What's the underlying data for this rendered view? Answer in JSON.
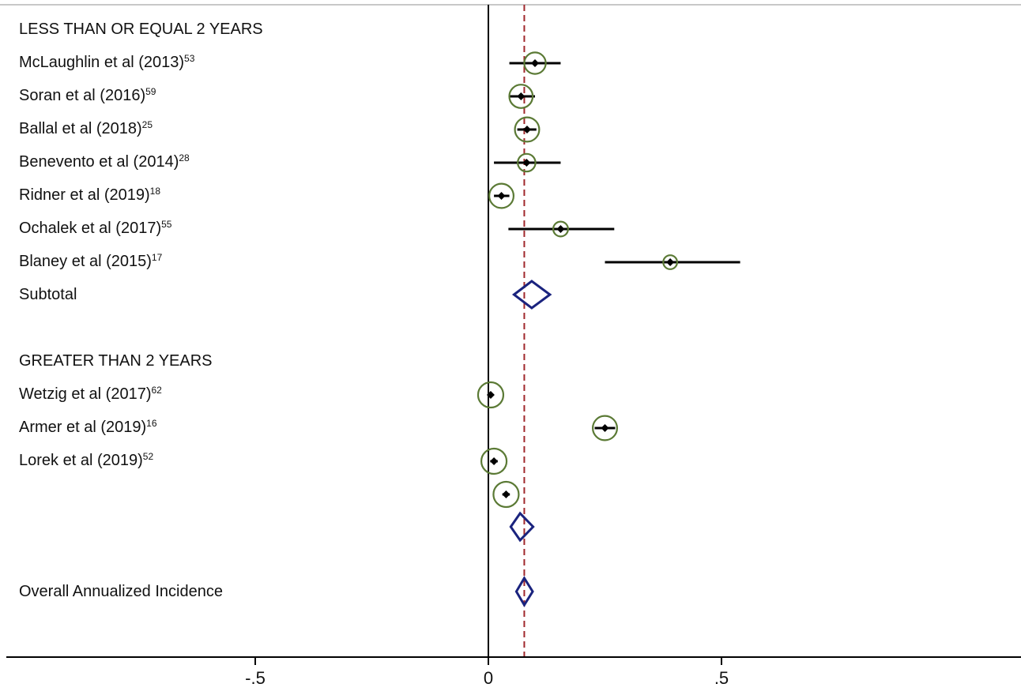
{
  "chart_data": {
    "type": "forest",
    "xlim": [
      -1.0,
      1.13
    ],
    "xticks": [
      -0.5,
      0,
      0.5
    ],
    "xtick_labels": [
      "-.5",
      "0",
      ".5"
    ],
    "reference_line": 0,
    "overall_line": 0.077,
    "groups": [
      {
        "heading": "LESS THAN OR EQUAL 2 YEARS",
        "studies": [
          {
            "name": "McLaughlin et al (2013)",
            "ref": "53",
            "estimate": 0.1,
            "ci": [
              0.045,
              0.155
            ],
            "weight": 0.8
          },
          {
            "name": "Soran et al (2016)",
            "ref": "59",
            "estimate": 0.07,
            "ci": [
              0.045,
              0.1
            ],
            "weight": 0.9
          },
          {
            "name": "Ballal et al (2018)",
            "ref": "25",
            "estimate": 0.083,
            "ci": [
              0.062,
              0.103
            ],
            "weight": 0.95
          },
          {
            "name": "Benevento et al (2014)",
            "ref": "28",
            "estimate": 0.082,
            "ci": [
              0.012,
              0.155
            ],
            "weight": 0.6
          },
          {
            "name": "Ridner et al (2019)",
            "ref": "18",
            "estimate": 0.028,
            "ci": [
              0.012,
              0.045
            ],
            "weight": 0.95
          },
          {
            "name": "Ochalek et al (2017)",
            "ref": "55",
            "estimate": 0.155,
            "ci": [
              0.043,
              0.27
            ],
            "weight": 0.45
          },
          {
            "name": "Blaney et al (2015)",
            "ref": "17",
            "estimate": 0.39,
            "ci": [
              0.25,
              0.54
            ],
            "weight": 0.4
          }
        ],
        "subtotal": {
          "label": "Subtotal",
          "estimate": 0.093,
          "ci": [
            0.055,
            0.132
          ]
        }
      },
      {
        "heading": "GREATER THAN 2 YEARS",
        "studies": [
          {
            "name": "Wetzig et al (2017)",
            "ref": "62",
            "estimate": 0.005,
            "ci": [
              0.0,
              0.01
            ],
            "weight": 1.0
          },
          {
            "name": "Armer et al (2019)",
            "ref": "16",
            "estimate": 0.25,
            "ci": [
              0.228,
              0.272
            ],
            "weight": 0.95
          },
          {
            "name": "Lorek et al (2019)",
            "ref": "52",
            "estimate": 0.012,
            "ci": [
              0.004,
              0.02
            ],
            "weight": 1.0
          },
          {
            "name": "",
            "ref": "",
            "estimate": 0.038,
            "ci": [
              0.03,
              0.046
            ],
            "weight": 1.0
          }
        ],
        "subtotal": {
          "label": "",
          "estimate": 0.068,
          "ci": [
            0.048,
            0.096
          ]
        }
      }
    ],
    "overall": {
      "label": "Overall Annualized Incidence",
      "estimate": 0.077,
      "ci": [
        0.06,
        0.095
      ]
    },
    "colors": {
      "ci_line": "#000000",
      "point": "#000000",
      "weight_circle": "#5b7a35",
      "diamond": "#1a237e",
      "overall_line": "#a0282c",
      "axis": "#000000"
    }
  }
}
